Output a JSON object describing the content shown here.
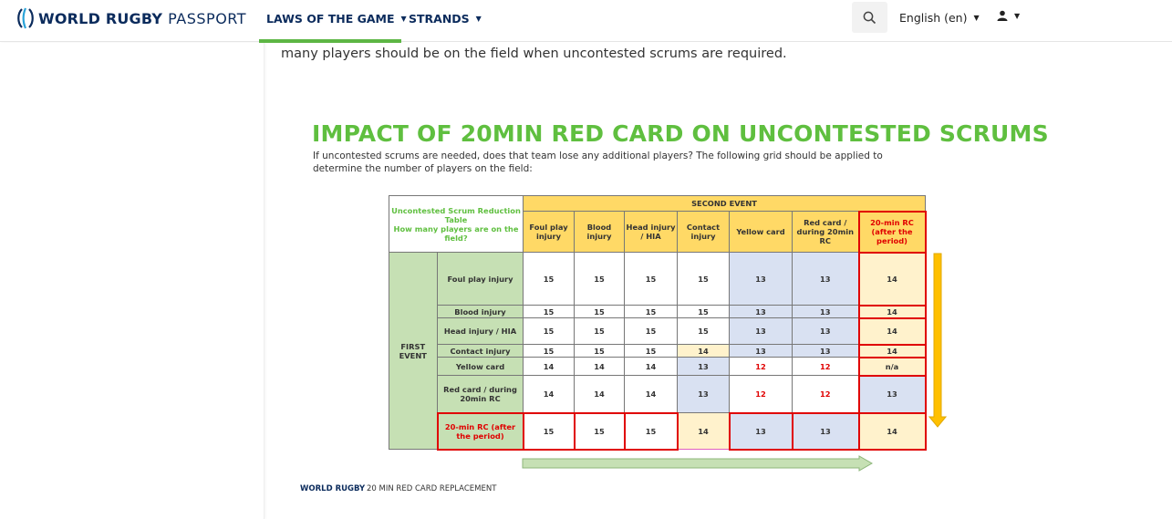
{
  "header": {
    "logo_bold": "WORLD RUGBY",
    "logo_light": "PASSPORT",
    "nav": [
      {
        "label": "LAWS OF THE GAME"
      },
      {
        "label": "STRANDS"
      }
    ],
    "language": "English (en)",
    "colors": {
      "accent": "#5db644",
      "brand": "#0b2b5c"
    }
  },
  "content": {
    "intro": "many players should be on the field when uncontested scrums are required."
  },
  "figure": {
    "title": "IMPACT OF 20MIN RED CARD ON UNCONTESTED SCRUMS",
    "description": "If uncontested scrums are needed, does that team lose any additional players? The following grid should be applied to determine the number of players on the field:",
    "table": {
      "corner_title": "Uncontested Scrum Reduction Table",
      "corner_question": "How many players are on the field?",
      "second_event_label": "SECOND EVENT",
      "first_event_label": "FIRST EVENT",
      "columns": [
        "Foul play injury",
        "Blood injury",
        "Head injury / HIA",
        "Contact injury",
        "Yellow card",
        "Red card / during 20min RC",
        "20-min RC (after the period)"
      ],
      "rows": [
        {
          "label": "Foul play injury",
          "values": [
            "15",
            "15",
            "15",
            "15",
            "13",
            "13",
            "14"
          ]
        },
        {
          "label": "Blood injury",
          "values": [
            "15",
            "15",
            "15",
            "15",
            "13",
            "13",
            "14"
          ]
        },
        {
          "label": "Head injury / HIA",
          "values": [
            "15",
            "15",
            "15",
            "15",
            "13",
            "13",
            "14"
          ]
        },
        {
          "label": "Contact injury",
          "values": [
            "15",
            "15",
            "15",
            "14",
            "13",
            "13",
            "14"
          ]
        },
        {
          "label": "Yellow card",
          "values": [
            "14",
            "14",
            "14",
            "13",
            "12",
            "12",
            "n/a"
          ]
        },
        {
          "label": "Red card / during 20min RC",
          "values": [
            "14",
            "14",
            "14",
            "13",
            "12",
            "12",
            "13"
          ]
        },
        {
          "label": "20-min RC (after the period)",
          "values": [
            "15",
            "15",
            "15",
            "14",
            "13",
            "13",
            "14"
          ]
        }
      ]
    },
    "footer_brand": "WORLD RUGBY",
    "footer_text": "20 MIN RED CARD REPLACEMENT"
  },
  "icons": [
    "rugby-logo-icon",
    "search-icon",
    "user-icon",
    "chevron-down-icon",
    "arrow-right-icon",
    "arrow-down-icon"
  ]
}
